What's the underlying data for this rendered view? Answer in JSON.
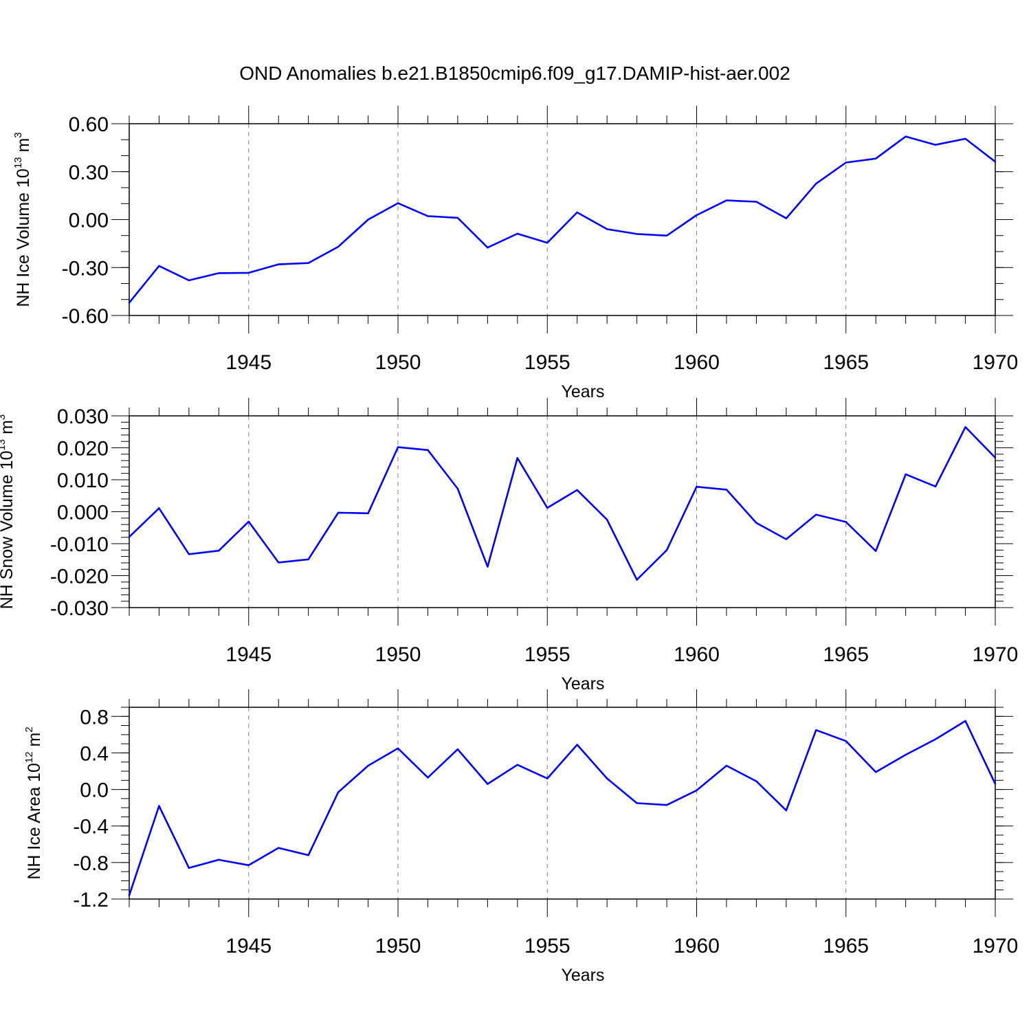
{
  "figure_title": "OND Anomalies b.e21.B1850cmip6.f09_g17.DAMIP-hist-aer.002",
  "colors": {
    "line": "#0000ff",
    "axis": "#000000",
    "grid": "#808080",
    "background": "#ffffff"
  },
  "chart_data": [
    {
      "type": "line",
      "title": "OND Anomalies b.e21.B1850cmip6.f09_g17.DAMIP-hist-aer.002",
      "xlabel": "Years",
      "ylabel": {
        "prefix": "NH Ice Volume 10",
        "exponent": "13",
        "unit": " m",
        "unit_exponent": "3"
      },
      "xlim": [
        1941,
        1970
      ],
      "ylim": [
        -0.6,
        0.6
      ],
      "xticks": [
        1945,
        1950,
        1955,
        1960,
        1965,
        1970
      ],
      "xtick_labels": [
        "1945",
        "1950",
        "1955",
        "1960",
        "1965",
        "1970"
      ],
      "yticks": [
        -0.6,
        -0.3,
        0.0,
        0.3,
        0.6
      ],
      "ytick_labels": [
        "-0.60",
        "-0.30",
        "0.00",
        "0.30",
        "0.60"
      ],
      "grid": "vertical dashed at major x ticks",
      "x": [
        1941,
        1942,
        1943,
        1944,
        1945,
        1946,
        1947,
        1948,
        1949,
        1950,
        1951,
        1952,
        1953,
        1954,
        1955,
        1956,
        1957,
        1958,
        1959,
        1960,
        1961,
        1962,
        1963,
        1964,
        1965,
        1966,
        1967,
        1968,
        1969,
        1970
      ],
      "series": [
        {
          "name": "NH Ice Volume",
          "values": [
            -0.52,
            -0.29,
            -0.38,
            -0.335,
            -0.333,
            -0.28,
            -0.272,
            -0.17,
            0.0,
            0.103,
            0.022,
            0.011,
            -0.175,
            -0.088,
            -0.145,
            0.045,
            -0.06,
            -0.09,
            -0.1,
            0.028,
            0.12,
            0.112,
            0.008,
            0.225,
            0.357,
            0.382,
            0.52,
            0.468,
            0.506,
            0.362
          ]
        }
      ]
    },
    {
      "type": "line",
      "title": "",
      "xlabel": "Years",
      "ylabel": {
        "prefix": "NH Snow Volume 10",
        "exponent": "13",
        "unit": " m",
        "unit_exponent": "3"
      },
      "xlim": [
        1941,
        1970
      ],
      "ylim": [
        -0.03,
        0.03
      ],
      "xticks": [
        1945,
        1950,
        1955,
        1960,
        1965,
        1970
      ],
      "xtick_labels": [
        "1945",
        "1950",
        "1955",
        "1960",
        "1965",
        "1970"
      ],
      "yticks": [
        -0.03,
        -0.02,
        -0.01,
        0.0,
        0.01,
        0.02,
        0.03
      ],
      "ytick_labels": [
        "-0.030",
        "-0.020",
        "-0.010",
        "0.000",
        "0.010",
        "0.020",
        "0.030"
      ],
      "grid": "vertical dashed at major x ticks",
      "x": [
        1941,
        1942,
        1943,
        1944,
        1945,
        1946,
        1947,
        1948,
        1949,
        1950,
        1951,
        1952,
        1953,
        1954,
        1955,
        1956,
        1957,
        1958,
        1959,
        1960,
        1961,
        1962,
        1963,
        1964,
        1965,
        1966,
        1967,
        1968,
        1969,
        1970
      ],
      "series": [
        {
          "name": "NH Snow Volume",
          "values": [
            -0.0079,
            0.0011,
            -0.0133,
            -0.0122,
            -0.0031,
            -0.0159,
            -0.0149,
            -0.0003,
            -0.0005,
            0.0202,
            0.0193,
            0.0072,
            -0.0172,
            0.0168,
            0.0012,
            0.0068,
            -0.0025,
            -0.0213,
            -0.012,
            0.0078,
            0.0069,
            -0.0035,
            -0.0086,
            -0.0009,
            -0.0032,
            -0.0123,
            0.0117,
            0.0079,
            0.0265,
            0.0169
          ]
        }
      ]
    },
    {
      "type": "line",
      "title": "",
      "xlabel": "Years",
      "ylabel": {
        "prefix": "NH Ice Area 10",
        "exponent": "12",
        "unit": " m",
        "unit_exponent": "2"
      },
      "xlim": [
        1941,
        1970
      ],
      "ylim": [
        -1.2,
        0.9
      ],
      "xticks": [
        1945,
        1950,
        1955,
        1960,
        1965,
        1970
      ],
      "xtick_labels": [
        "1945",
        "1950",
        "1955",
        "1960",
        "1965",
        "1970"
      ],
      "yticks": [
        -1.2,
        -0.8,
        -0.4,
        0.0,
        0.4,
        0.8
      ],
      "ytick_labels": [
        "-1.2",
        "-0.8",
        "-0.4",
        "0.0",
        "0.4",
        "0.8"
      ],
      "grid": "vertical dashed at major x ticks",
      "x": [
        1941,
        1942,
        1943,
        1944,
        1945,
        1946,
        1947,
        1948,
        1949,
        1950,
        1951,
        1952,
        1953,
        1954,
        1955,
        1956,
        1957,
        1958,
        1959,
        1960,
        1961,
        1962,
        1963,
        1964,
        1965,
        1966,
        1967,
        1968,
        1969,
        1970
      ],
      "series": [
        {
          "name": "NH Ice Area",
          "values": [
            -1.16,
            -0.18,
            -0.86,
            -0.77,
            -0.83,
            -0.64,
            -0.72,
            -0.03,
            0.26,
            0.45,
            0.13,
            0.44,
            0.06,
            0.27,
            0.12,
            0.49,
            0.12,
            -0.15,
            -0.17,
            -0.01,
            0.26,
            0.09,
            -0.23,
            0.65,
            0.53,
            0.19,
            0.38,
            0.55,
            0.75,
            0.06
          ]
        }
      ]
    }
  ]
}
